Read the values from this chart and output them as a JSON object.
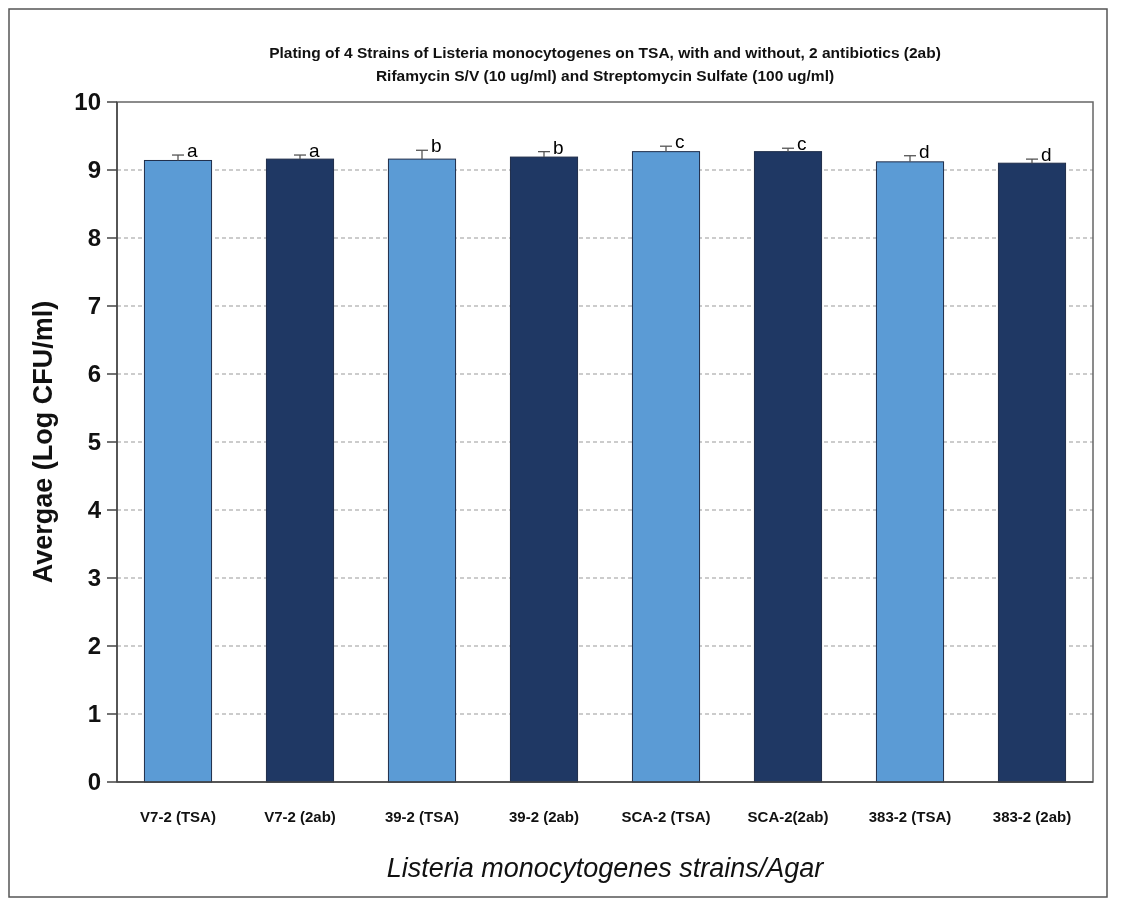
{
  "chart_data": {
    "type": "bar",
    "title": "Plating of 4 Strains of Listeria monocytogenes on TSA, with and without, 2 antibiotics (2ab)\nRifamycin S/V (10 ug/ml) and Streptomycin Sulfate (100 ug/ml)",
    "xlabel": "Listeria monocytogenes strains/Agar",
    "ylabel": "Avergae (Log CFU/ml)",
    "categories": [
      "V7-2 (TSA)",
      "V7-2 (2ab)",
      "39-2 (TSA)",
      "39-2 (2ab)",
      "SCA-2 (TSA)",
      "SCA-2(2ab)",
      "383-2 (TSA)",
      "383-2 (2ab)"
    ],
    "values": [
      9.14,
      9.16,
      9.16,
      9.19,
      9.27,
      9.27,
      9.12,
      9.1
    ],
    "colors": [
      "#5b9bd5",
      "#1f3864",
      "#5b9bd5",
      "#1f3864",
      "#5b9bd5",
      "#1f3864",
      "#5b9bd5",
      "#1f3864"
    ],
    "errors": [
      [
        9.14,
        9.22
      ],
      [
        9.16,
        9.22
      ],
      [
        9.16,
        9.29
      ],
      [
        9.19,
        9.27
      ],
      [
        9.27,
        9.35
      ],
      [
        9.27,
        9.32
      ],
      [
        9.12,
        9.21
      ],
      [
        9.1,
        9.16
      ]
    ],
    "ylim": [
      0,
      10
    ],
    "yticks": [
      0,
      1,
      2,
      3,
      4,
      5,
      6,
      7,
      8,
      9,
      10
    ],
    "grid": "y",
    "annotations": [
      {
        "text": "a",
        "x": "V7-2 (TSA)",
        "y": 9.22
      },
      {
        "text": "a",
        "x": "V7-2 (2ab)",
        "y": 9.22
      },
      {
        "text": "b",
        "x": "39-2 (TSA)",
        "y": 9.29
      },
      {
        "text": "b",
        "x": "39-2 (2ab)",
        "y": 9.27
      },
      {
        "text": "c",
        "x": "SCA-2 (TSA)",
        "y": 9.35
      },
      {
        "text": "c",
        "x": "SCA-2(2ab)",
        "y": 9.32
      },
      {
        "text": "d",
        "x": "383-2 (TSA)",
        "y": 9.21
      },
      {
        "text": "d",
        "x": "383-2 (2ab)",
        "y": 9.16
      }
    ]
  }
}
